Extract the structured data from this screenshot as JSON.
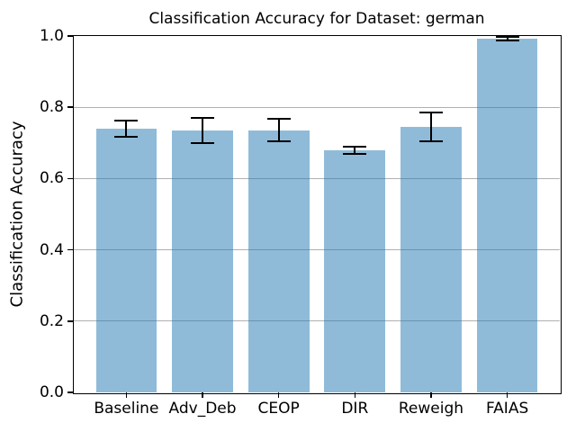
{
  "figure": {
    "title": "Classification Accuracy for Dataset: german"
  },
  "chart_data": {
    "type": "bar",
    "title": "Classification Accuracy for Dataset: german",
    "xlabel": "",
    "ylabel": "Classification Accuracy",
    "categories": [
      "Baseline",
      "Adv_Deb",
      "CEOP",
      "DIR",
      "Reweigh",
      "FAIAS"
    ],
    "values": [
      0.74,
      0.735,
      0.736,
      0.68,
      0.745,
      0.993
    ],
    "errors": [
      0.022,
      0.035,
      0.031,
      0.01,
      0.041,
      0.005
    ],
    "ylim": [
      0.0,
      1.0
    ],
    "yticks": [
      0.0,
      0.2,
      0.4,
      0.6,
      0.8,
      1.0
    ],
    "ytick_label_format": "one_decimal",
    "grid": "horizontal-only",
    "legend_position": "none",
    "bar_color": "#1f77b4",
    "bar_alpha": 0.5,
    "bar_blended_color": "#8fbbd9",
    "error_color": "#000000",
    "grid_color": "#b0b0b0",
    "axis_color": "#000000",
    "text_color": "#000000",
    "background_color": "#ffffff"
  }
}
